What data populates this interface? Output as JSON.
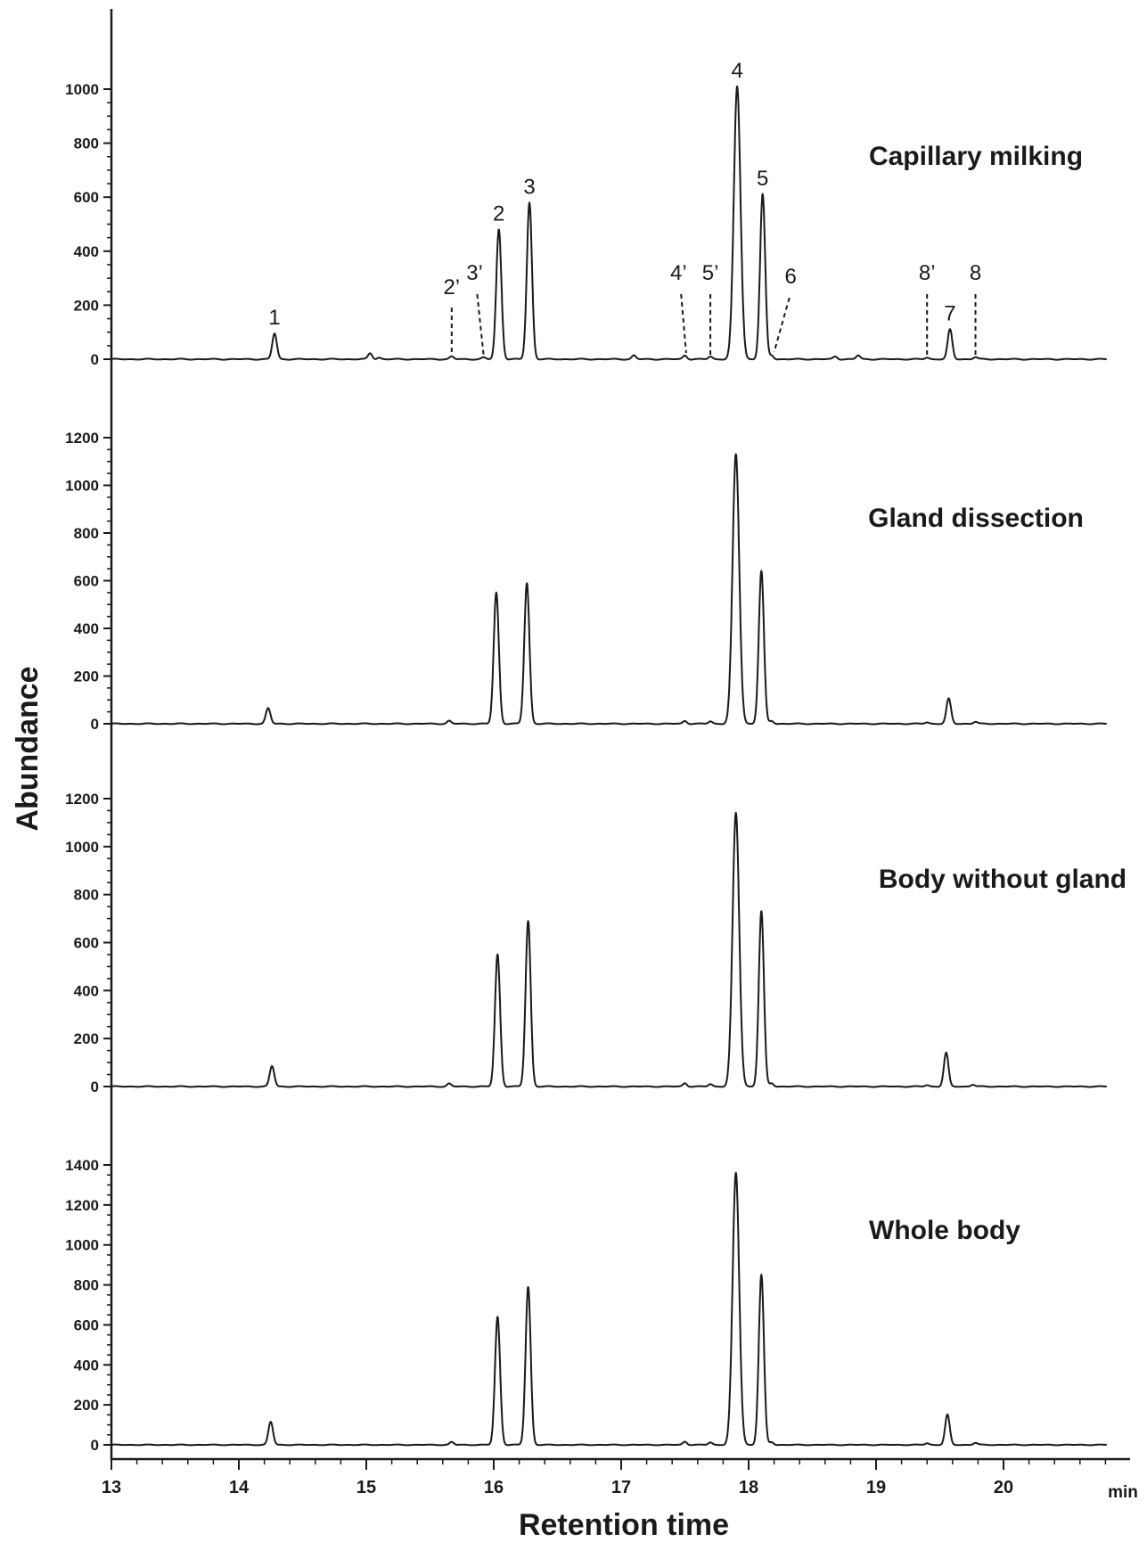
{
  "chart_data": {
    "type": "line",
    "xlabel": "Retention time",
    "ylabel": "Abundance",
    "x_unit": "min",
    "xlim": [
      13,
      21
    ],
    "x_ticks": [
      13,
      14,
      15,
      16,
      17,
      18,
      19,
      20
    ],
    "panels": [
      {
        "title": "Capillary milking",
        "ylim": [
          0,
          1000
        ],
        "y_ticks": [
          0,
          200,
          400,
          600,
          800,
          1000
        ],
        "baseline_bumps": [
          [
            15.03,
            22
          ],
          [
            15.1,
            6
          ],
          [
            15.67,
            10
          ],
          [
            15.92,
            6
          ],
          [
            17.1,
            14
          ],
          [
            17.5,
            14
          ],
          [
            17.7,
            10
          ],
          [
            18.18,
            14
          ],
          [
            18.68,
            10
          ],
          [
            18.86,
            14
          ],
          [
            19.4,
            6
          ],
          [
            19.78,
            8
          ]
        ],
        "peaks": [
          {
            "label": "1",
            "rt": 14.28,
            "height": 95
          },
          {
            "label": "2",
            "rt": 16.04,
            "height": 480
          },
          {
            "label": "3",
            "rt": 16.28,
            "height": 580
          },
          {
            "label": "4",
            "rt": 17.91,
            "height": 1010
          },
          {
            "label": "5",
            "rt": 18.11,
            "height": 610
          },
          {
            "label": "7",
            "rt": 19.58,
            "height": 110
          }
        ],
        "minor_labels": [
          {
            "label": "2’",
            "rt": 15.67
          },
          {
            "label": "3’",
            "rt": 15.92
          },
          {
            "label": "4’",
            "rt": 17.5
          },
          {
            "label": "5’",
            "rt": 17.7
          },
          {
            "label": "6",
            "rt": 18.18
          },
          {
            "label": "8’",
            "rt": 19.4
          },
          {
            "label": "8",
            "rt": 19.78
          }
        ]
      },
      {
        "title": "Gland dissection",
        "ylim": [
          0,
          1200
        ],
        "y_ticks": [
          0,
          200,
          400,
          600,
          800,
          1000,
          1200
        ],
        "baseline_bumps": [
          [
            15.65,
            12
          ],
          [
            17.5,
            12
          ],
          [
            17.7,
            10
          ],
          [
            18.18,
            12
          ],
          [
            19.4,
            6
          ],
          [
            19.78,
            8
          ]
        ],
        "peaks": [
          {
            "rt": 14.23,
            "height": 65
          },
          {
            "rt": 16.02,
            "height": 550
          },
          {
            "rt": 16.26,
            "height": 590
          },
          {
            "rt": 17.9,
            "height": 1130
          },
          {
            "rt": 18.1,
            "height": 640
          },
          {
            "rt": 19.57,
            "height": 105
          }
        ]
      },
      {
        "title": "Body without gland",
        "ylim": [
          0,
          1200
        ],
        "y_ticks": [
          0,
          200,
          400,
          600,
          800,
          1000,
          1200
        ],
        "baseline_bumps": [
          [
            15.65,
            12
          ],
          [
            17.5,
            14
          ],
          [
            17.7,
            10
          ],
          [
            18.18,
            14
          ],
          [
            19.4,
            6
          ],
          [
            19.76,
            8
          ]
        ],
        "peaks": [
          {
            "rt": 14.26,
            "height": 85
          },
          {
            "rt": 16.03,
            "height": 550
          },
          {
            "rt": 16.27,
            "height": 690
          },
          {
            "rt": 17.9,
            "height": 1140
          },
          {
            "rt": 18.1,
            "height": 730
          },
          {
            "rt": 19.55,
            "height": 140
          }
        ]
      },
      {
        "title": "Whole body",
        "ylim": [
          0,
          1400
        ],
        "y_ticks": [
          0,
          200,
          400,
          600,
          800,
          1000,
          1200,
          1400
        ],
        "baseline_bumps": [
          [
            15.67,
            14
          ],
          [
            17.5,
            16
          ],
          [
            17.7,
            12
          ],
          [
            18.18,
            14
          ],
          [
            19.4,
            8
          ],
          [
            19.78,
            10
          ]
        ],
        "peaks": [
          {
            "rt": 14.25,
            "height": 115
          },
          {
            "rt": 16.03,
            "height": 640
          },
          {
            "rt": 16.27,
            "height": 790
          },
          {
            "rt": 17.9,
            "height": 1360
          },
          {
            "rt": 18.1,
            "height": 850
          },
          {
            "rt": 19.56,
            "height": 150
          }
        ]
      }
    ]
  }
}
